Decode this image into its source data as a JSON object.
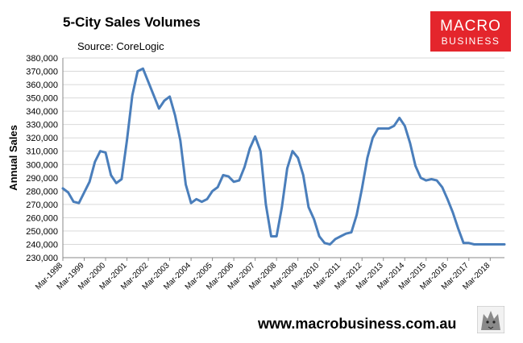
{
  "header": {
    "title": "5-City Sales Volumes",
    "subtitle": "Source: CoreLogic"
  },
  "brand": {
    "top": "MACRO",
    "bottom": "BUSINESS",
    "color": "#e4252c"
  },
  "footer": {
    "url": "www.macrobusiness.com.au",
    "icon": "wolf-logo-icon"
  },
  "colors": {
    "series": "#4a7ebb",
    "grid": "#d9d9d9",
    "axis": "#888888"
  },
  "chart_data": {
    "type": "line",
    "title": "5-City Sales Volumes",
    "subtitle": "Source: CoreLogic",
    "ylabel": "Annual Sales",
    "xlabel": "",
    "ylim": [
      230000,
      380000
    ],
    "ytick_step": 10000,
    "y_ticks": [
      "230,000",
      "240,000",
      "250,000",
      "260,000",
      "270,000",
      "280,000",
      "290,000",
      "300,000",
      "310,000",
      "320,000",
      "330,000",
      "340,000",
      "350,000",
      "360,000",
      "370,000",
      "380,000"
    ],
    "x_ticks": [
      "Mar-1998",
      "Mar-1999",
      "Mar-2000",
      "Mar-2001",
      "Mar-2002",
      "Mar-2003",
      "Mar-2004",
      "Mar-2005",
      "Mar-2006",
      "Mar-2007",
      "Mar-2008",
      "Mar-2009",
      "Mar-2010",
      "Mar-2011",
      "Mar-2012",
      "Mar-2013",
      "Mar-2014",
      "Mar-2015",
      "Mar-2016",
      "Mar-2017",
      "Mar-2018"
    ],
    "x_range": [
      "Mar-1998",
      "Nov-2018"
    ],
    "grid": true,
    "legend": "none",
    "series": [
      {
        "x": [
          "Mar-1998",
          "Jun-1998",
          "Sep-1998",
          "Dec-1998",
          "Mar-1999",
          "Jun-1999",
          "Sep-1999",
          "Dec-1999",
          "Mar-2000",
          "Jun-2000",
          "Sep-2000",
          "Dec-2000",
          "Mar-2001",
          "Jun-2001",
          "Sep-2001",
          "Dec-2001",
          "Mar-2002",
          "Jun-2002",
          "Sep-2002",
          "Dec-2002",
          "Mar-2003",
          "Jun-2003",
          "Sep-2003",
          "Dec-2003",
          "Mar-2004",
          "Jun-2004",
          "Sep-2004",
          "Dec-2004",
          "Mar-2005",
          "Jun-2005",
          "Sep-2005",
          "Dec-2005",
          "Mar-2006",
          "Jun-2006",
          "Sep-2006",
          "Dec-2006",
          "Mar-2007",
          "Jun-2007",
          "Sep-2007",
          "Dec-2007",
          "Mar-2008",
          "Jun-2008",
          "Sep-2008",
          "Dec-2008",
          "Mar-2009",
          "Jun-2009",
          "Sep-2009",
          "Dec-2009",
          "Mar-2010",
          "Jun-2010",
          "Sep-2010",
          "Dec-2010",
          "Mar-2011",
          "Jun-2011",
          "Sep-2011",
          "Dec-2011",
          "Mar-2012",
          "Jun-2012",
          "Sep-2012",
          "Dec-2012",
          "Mar-2013",
          "Jun-2013",
          "Sep-2013",
          "Dec-2013",
          "Mar-2014",
          "Jun-2014",
          "Sep-2014",
          "Dec-2014",
          "Mar-2015",
          "Jun-2015",
          "Sep-2015",
          "Dec-2015",
          "Mar-2016",
          "Jun-2016",
          "Sep-2016",
          "Dec-2016",
          "Mar-2017",
          "Jun-2017",
          "Sep-2017",
          "Dec-2017",
          "Mar-2018",
          "Jun-2018",
          "Sep-2018",
          "Nov-2018"
        ],
        "values": [
          282000,
          279000,
          272000,
          271000,
          279000,
          287000,
          302000,
          310000,
          309000,
          292000,
          286000,
          289000,
          318000,
          352000,
          370000,
          372000,
          362000,
          352000,
          342000,
          348000,
          351000,
          337000,
          318000,
          285000,
          271000,
          274000,
          272000,
          274000,
          280000,
          283000,
          292000,
          291000,
          287000,
          288000,
          298000,
          312000,
          321000,
          310000,
          270000,
          246000,
          246000,
          268000,
          297000,
          310000,
          305000,
          292000,
          268000,
          259000,
          246000,
          241000,
          240000,
          244000,
          246000,
          248000,
          249000,
          262000,
          282000,
          305000,
          320000,
          327000,
          327000,
          327000,
          329000,
          335000,
          329000,
          316000,
          299000,
          290000,
          288000,
          289000,
          288000,
          283000,
          274000,
          264000,
          252000,
          241000,
          241000,
          240000,
          240000,
          240000,
          240000,
          240000,
          240000,
          240000
        ]
      }
    ]
  }
}
